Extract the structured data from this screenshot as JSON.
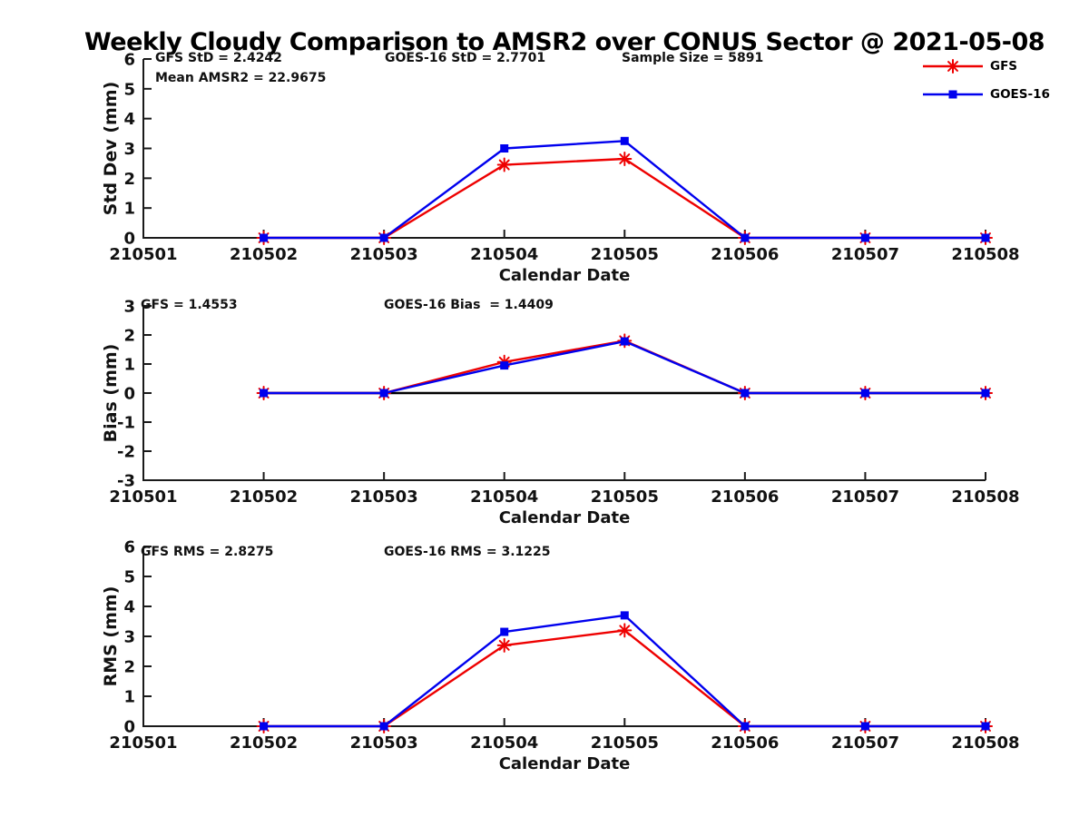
{
  "title": "Weekly Cloudy Comparison to AMSR2 over CONUS Sector @ 2021-05-08",
  "legend": {
    "items": [
      {
        "label": "GFS",
        "color": "#ee0000",
        "marker": "asterisk"
      },
      {
        "label": "GOES-16",
        "color": "#0000ee",
        "marker": "square"
      }
    ]
  },
  "colors": {
    "gfs": "#ee0000",
    "goes16": "#0000ee",
    "zero_line": "#000000",
    "axis": "#1a1a1a"
  },
  "chart_data": [
    {
      "type": "line",
      "panel": "std_dev",
      "ylabel": "Std Dev (mm)",
      "xlabel": "Calendar Date",
      "ylim": [
        0,
        6
      ],
      "yticks": [
        0,
        1,
        2,
        3,
        4,
        5,
        6
      ],
      "x_categories": [
        "210501",
        "210502",
        "210503",
        "210504",
        "210505",
        "210506",
        "210507",
        "210508"
      ],
      "grid": false,
      "legend_position": "top-right",
      "zero_line": false,
      "annotations": [
        {
          "id": "gfs_std",
          "text": "GFS StD = 2.4242"
        },
        {
          "id": "mean_amsr2",
          "text": "Mean AMSR2 = 22.9675"
        },
        {
          "id": "goes16_std",
          "text": "GOES-16 StD = 2.7701"
        },
        {
          "id": "sample_size",
          "text": "Sample Size = 5891"
        }
      ],
      "series": [
        {
          "name": "GFS",
          "color": "#ee0000",
          "marker": "asterisk",
          "x": [
            "210502",
            "210503",
            "210504",
            "210505",
            "210506",
            "210507",
            "210508"
          ],
          "y": [
            0,
            0,
            2.45,
            2.65,
            0,
            0,
            0
          ]
        },
        {
          "name": "GOES-16",
          "color": "#0000ee",
          "marker": "square",
          "x": [
            "210502",
            "210503",
            "210504",
            "210505",
            "210506",
            "210507",
            "210508"
          ],
          "y": [
            0,
            0,
            3.0,
            3.25,
            0,
            0,
            0
          ]
        }
      ]
    },
    {
      "type": "line",
      "panel": "bias",
      "ylabel": "Bias (mm)",
      "xlabel": "Calendar Date",
      "ylim": [
        -3,
        3
      ],
      "yticks": [
        -3,
        -2,
        -1,
        0,
        1,
        2,
        3
      ],
      "x_categories": [
        "210501",
        "210502",
        "210503",
        "210504",
        "210505",
        "210506",
        "210507",
        "210508"
      ],
      "grid": false,
      "zero_line": true,
      "annotations": [
        {
          "id": "gfs_bias",
          "text": "GFS = 1.4553"
        },
        {
          "id": "goes16_bias",
          "text": "GOES-16 Bias  = 1.4409"
        }
      ],
      "series": [
        {
          "name": "GFS",
          "color": "#ee0000",
          "marker": "asterisk",
          "x": [
            "210502",
            "210503",
            "210504",
            "210505",
            "210506",
            "210507",
            "210508"
          ],
          "y": [
            0,
            0,
            1.07,
            1.8,
            0,
            0,
            0
          ]
        },
        {
          "name": "GOES-16",
          "color": "#0000ee",
          "marker": "square",
          "x": [
            "210502",
            "210503",
            "210504",
            "210505",
            "210506",
            "210507",
            "210508"
          ],
          "y": [
            0,
            0,
            0.95,
            1.78,
            0,
            0,
            0
          ]
        }
      ]
    },
    {
      "type": "line",
      "panel": "rms",
      "ylabel": "RMS (mm)",
      "xlabel": "Calendar Date",
      "ylim": [
        0,
        6
      ],
      "yticks": [
        0,
        1,
        2,
        3,
        4,
        5,
        6
      ],
      "x_categories": [
        "210501",
        "210502",
        "210503",
        "210504",
        "210505",
        "210506",
        "210507",
        "210508"
      ],
      "grid": false,
      "zero_line": false,
      "annotations": [
        {
          "id": "gfs_rms",
          "text": "GFS RMS = 2.8275"
        },
        {
          "id": "goes16_rms",
          "text": "GOES-16 RMS = 3.1225"
        }
      ],
      "series": [
        {
          "name": "GFS",
          "color": "#ee0000",
          "marker": "asterisk",
          "x": [
            "210502",
            "210503",
            "210504",
            "210505",
            "210506",
            "210507",
            "210508"
          ],
          "y": [
            0,
            0,
            2.7,
            3.2,
            0,
            0,
            0
          ]
        },
        {
          "name": "GOES-16",
          "color": "#0000ee",
          "marker": "square",
          "x": [
            "210502",
            "210503",
            "210504",
            "210505",
            "210506",
            "210507",
            "210508"
          ],
          "y": [
            0,
            0,
            3.15,
            3.7,
            0,
            0,
            0
          ]
        }
      ]
    }
  ]
}
